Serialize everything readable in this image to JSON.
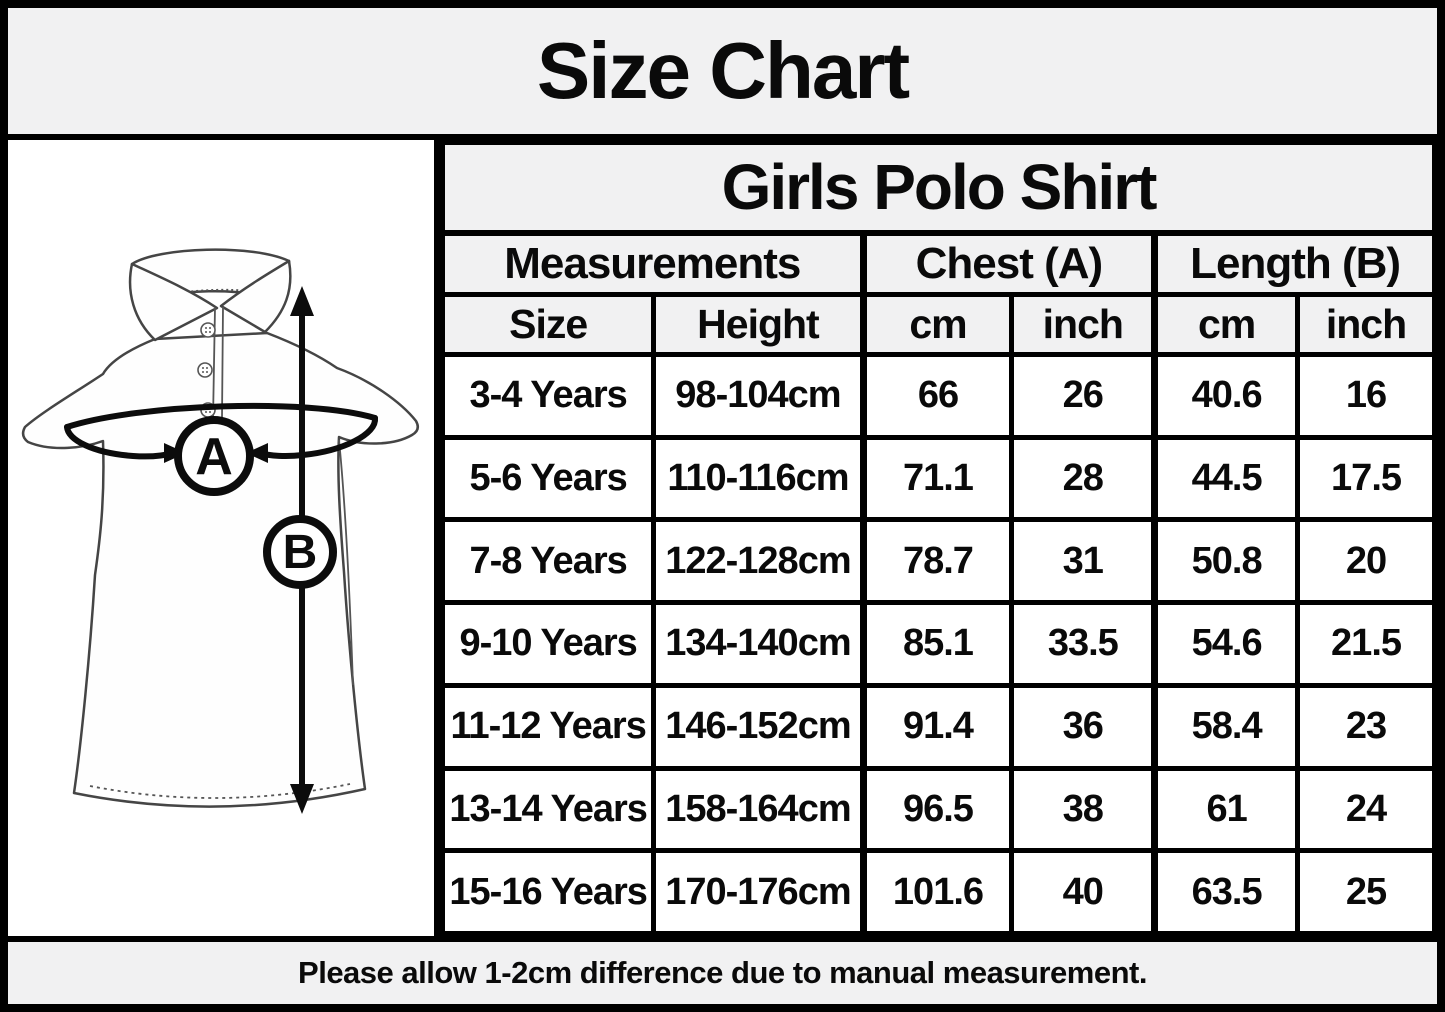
{
  "title": "Size Chart",
  "product": "Girls Polo Shirt",
  "footer_note": "Please allow 1-2cm difference due to manual measurement.",
  "diagram": {
    "description": "girls polo shirt sketch with measurement arrows",
    "label_a": "A",
    "label_b": "B"
  },
  "colors": {
    "band_gray": "#f1f1f2",
    "border_black": "#000000",
    "cell_white": "#ffffff",
    "sketch_stroke": "#454545"
  },
  "table": {
    "group_headers": [
      {
        "label": "Measurements",
        "span": 2
      },
      {
        "label": "Chest (A)",
        "span": 2
      },
      {
        "label": "Length (B)",
        "span": 2
      }
    ],
    "sub_headers": [
      "Size",
      "Height",
      "cm",
      "inch",
      "cm",
      "inch"
    ],
    "rows": [
      [
        "3-4 Years",
        "98-104cm",
        "66",
        "26",
        "40.6",
        "16"
      ],
      [
        "5-6 Years",
        "110-116cm",
        "71.1",
        "28",
        "44.5",
        "17.5"
      ],
      [
        "7-8 Years",
        "122-128cm",
        "78.7",
        "31",
        "50.8",
        "20"
      ],
      [
        "9-10 Years",
        "134-140cm",
        "85.1",
        "33.5",
        "54.6",
        "21.5"
      ],
      [
        "11-12 Years",
        "146-152cm",
        "91.4",
        "36",
        "58.4",
        "23"
      ],
      [
        "13-14 Years",
        "158-164cm",
        "96.5",
        "38",
        "61",
        "24"
      ],
      [
        "15-16 Years",
        "170-176cm",
        "101.6",
        "40",
        "63.5",
        "25"
      ]
    ]
  }
}
